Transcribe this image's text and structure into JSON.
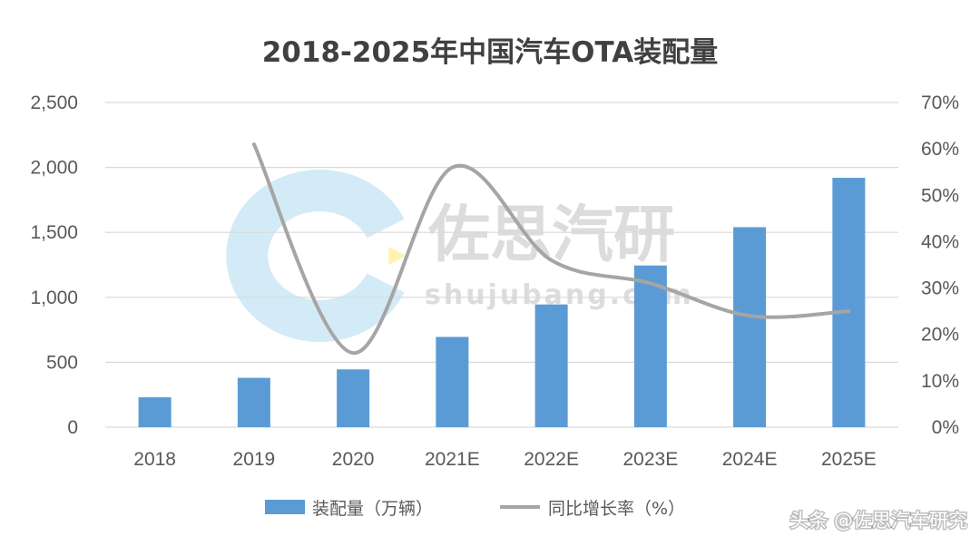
{
  "chart_data": {
    "type": "bar",
    "title": "2018-2025年中国汽车OTA装配量",
    "categories": [
      "2018",
      "2019",
      "2020",
      "2021E",
      "2022E",
      "2023E",
      "2024E",
      "2025E"
    ],
    "series": [
      {
        "name": "装配量（万辆）",
        "type": "bar",
        "axis": "left",
        "color": "#5b9bd5",
        "values": [
          230,
          380,
          445,
          695,
          945,
          1245,
          1540,
          1920
        ]
      },
      {
        "name": "同比增长率（%）",
        "type": "line",
        "axis": "right",
        "color": "#a5a5a5",
        "values": [
          null,
          61,
          16,
          56,
          36,
          31,
          24,
          25
        ]
      }
    ],
    "y_left": {
      "min": 0,
      "max": 2500,
      "ticks": [
        "0",
        "500",
        "1,000",
        "1,500",
        "2,000",
        "2,500"
      ]
    },
    "y_right": {
      "min": 0,
      "max": 70,
      "ticks": [
        "0%",
        "10%",
        "20%",
        "30%",
        "40%",
        "50%",
        "60%",
        "70%"
      ]
    },
    "grid": "horizontal",
    "legend_position": "bottom"
  },
  "watermark": {
    "logo_text": "佐思汽研",
    "site_text": "shujubang.com",
    "ring_color": "#d3ebf7",
    "accent_color": "#fff2b3"
  },
  "attribution": "头条 @佐思汽车研究"
}
